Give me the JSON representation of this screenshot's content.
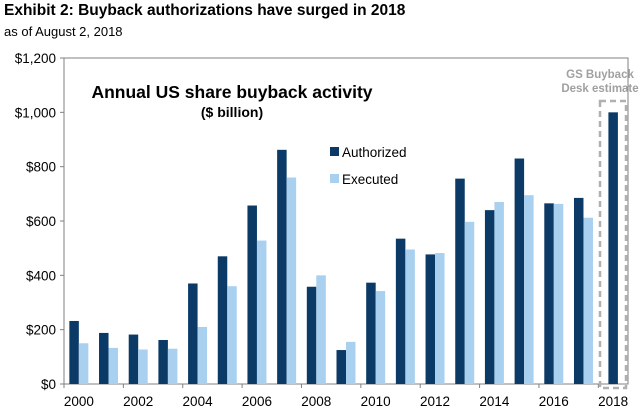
{
  "header": {
    "title": "Exhibit 2: Buyback authorizations have surged in 2018",
    "subtitle": "as of August 2, 2018"
  },
  "chart_data": {
    "type": "bar",
    "title": "Annual US share buyback activity",
    "subtitle": "($ billion)",
    "xlabel": "",
    "ylabel": "",
    "ylim": [
      0,
      1200
    ],
    "yticks": [
      "$0",
      "$200",
      "$400",
      "$600",
      "$800",
      "$1,000",
      "$1,200"
    ],
    "ytick_values": [
      0,
      200,
      400,
      600,
      800,
      1000,
      1200
    ],
    "categories": [
      "2000",
      "2001",
      "2002",
      "2003",
      "2004",
      "2005",
      "2006",
      "2007",
      "2008",
      "2009",
      "2010",
      "2011",
      "2012",
      "2013",
      "2014",
      "2015",
      "2016",
      "2017",
      "2018"
    ],
    "xtick_labels": [
      "2000",
      "2002",
      "2004",
      "2006",
      "2008",
      "2010",
      "2012",
      "2014",
      "2016",
      "2018"
    ],
    "series": [
      {
        "name": "Authorized",
        "color": "#0b3a66",
        "values": [
          232,
          188,
          182,
          162,
          370,
          470,
          657,
          862,
          358,
          125,
          373,
          535,
          477,
          756,
          640,
          830,
          665,
          685,
          1000
        ]
      },
      {
        "name": "Executed",
        "color": "#a9d0ee",
        "values": [
          150,
          133,
          127,
          130,
          210,
          360,
          528,
          760,
          400,
          155,
          342,
          495,
          482,
          597,
          670,
          695,
          663,
          612,
          null
        ]
      }
    ],
    "legend": "top-center",
    "grid": false,
    "annotation": {
      "text_line1": "GS Buyback",
      "text_line2": "Desk estimate",
      "target": "2018"
    }
  }
}
